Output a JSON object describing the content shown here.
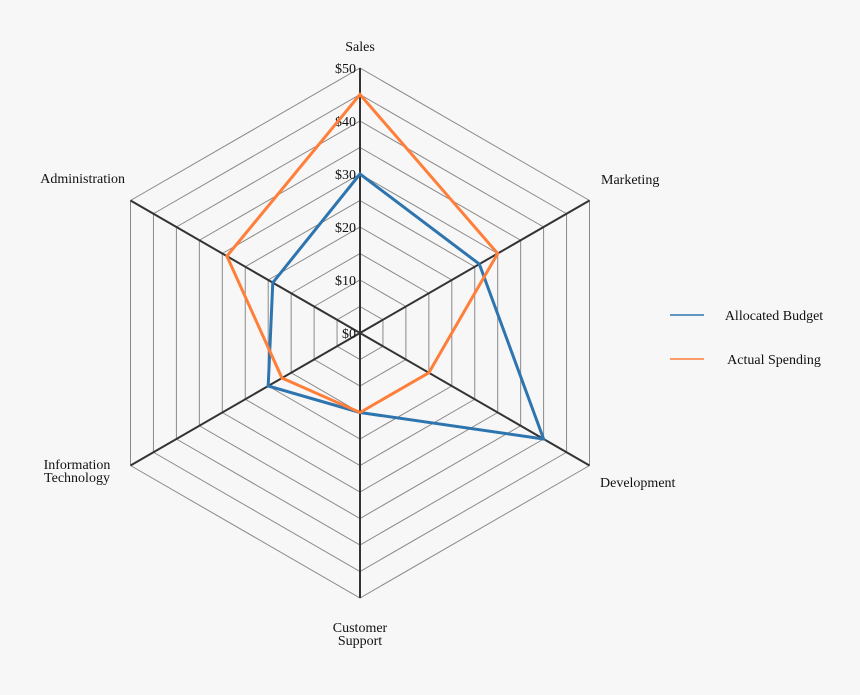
{
  "chart_data": {
    "type": "radar",
    "axes": [
      "Sales",
      "Marketing",
      "Development",
      "Customer Support",
      "Information Technology",
      "Administration"
    ],
    "axis_labels": [
      [
        "Sales"
      ],
      [
        "Marketing"
      ],
      [
        "Development"
      ],
      [
        "Customer",
        "Support"
      ],
      [
        "Information",
        "Technology"
      ],
      [
        "Administration"
      ]
    ],
    "rlim": [
      0,
      50
    ],
    "ring_step": 5,
    "ticks": [
      0,
      10,
      20,
      30,
      40,
      50
    ],
    "tick_labels": [
      "$0",
      "$10",
      "$20",
      "$30",
      "$40",
      "$50"
    ],
    "series": [
      {
        "name": "Allocated Budget",
        "color": "#2e75b0",
        "values": [
          30,
          26,
          40,
          15,
          20,
          19
        ]
      },
      {
        "name": "Actual Spending",
        "color": "#ff7f3a",
        "values": [
          45,
          30,
          15,
          15,
          17,
          29
        ]
      }
    ],
    "legend_position": "right"
  }
}
